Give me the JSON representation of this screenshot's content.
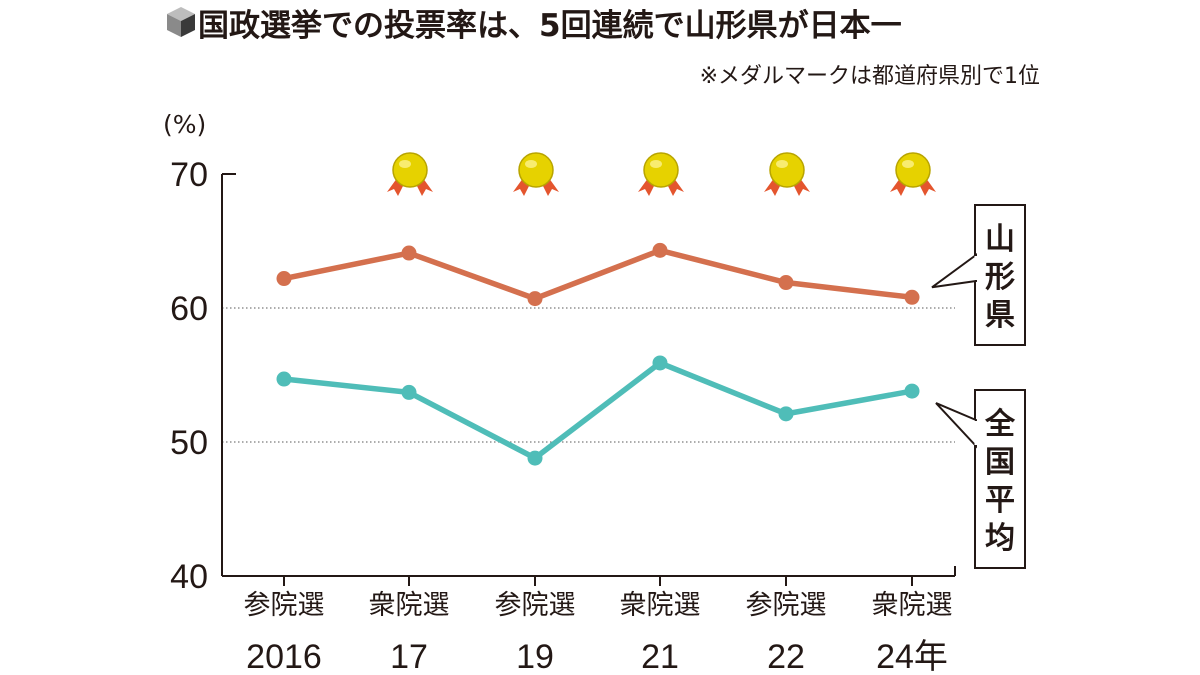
{
  "header": {
    "title": "国政選挙での投票率は、5回連続で山形県が日本一",
    "note": "※メダルマークは都道府県別で1位",
    "icon": "cube-icon"
  },
  "chart_data": {
    "type": "line",
    "title": "国政選挙での投票率は、5回連続で山形県が日本一",
    "unit_label": "(%)",
    "ylim": [
      40,
      70
    ],
    "yticks": [
      "40",
      "50",
      "60",
      "70"
    ],
    "grid_lines": [
      50,
      60
    ],
    "categories": [
      {
        "election": "参院選",
        "year": "2016"
      },
      {
        "election": "衆院選",
        "year": "17"
      },
      {
        "election": "参院選",
        "year": "19"
      },
      {
        "election": "衆院選",
        "year": "21"
      },
      {
        "election": "参院選",
        "year": "22"
      },
      {
        "election": "衆院選",
        "year": "24年"
      }
    ],
    "series": [
      {
        "name": "山形県",
        "color": "#d4704e",
        "values": [
          62.2,
          64.1,
          60.7,
          64.3,
          61.9,
          60.8
        ]
      },
      {
        "name": "全国平均",
        "color": "#4fbdb8",
        "values": [
          54.7,
          53.7,
          48.8,
          55.9,
          52.1,
          53.8
        ]
      }
    ],
    "medals": [
      false,
      true,
      true,
      true,
      true,
      true
    ],
    "medal_colors": {
      "gold": "#e6d200",
      "ribbon": "#e4552e"
    }
  }
}
